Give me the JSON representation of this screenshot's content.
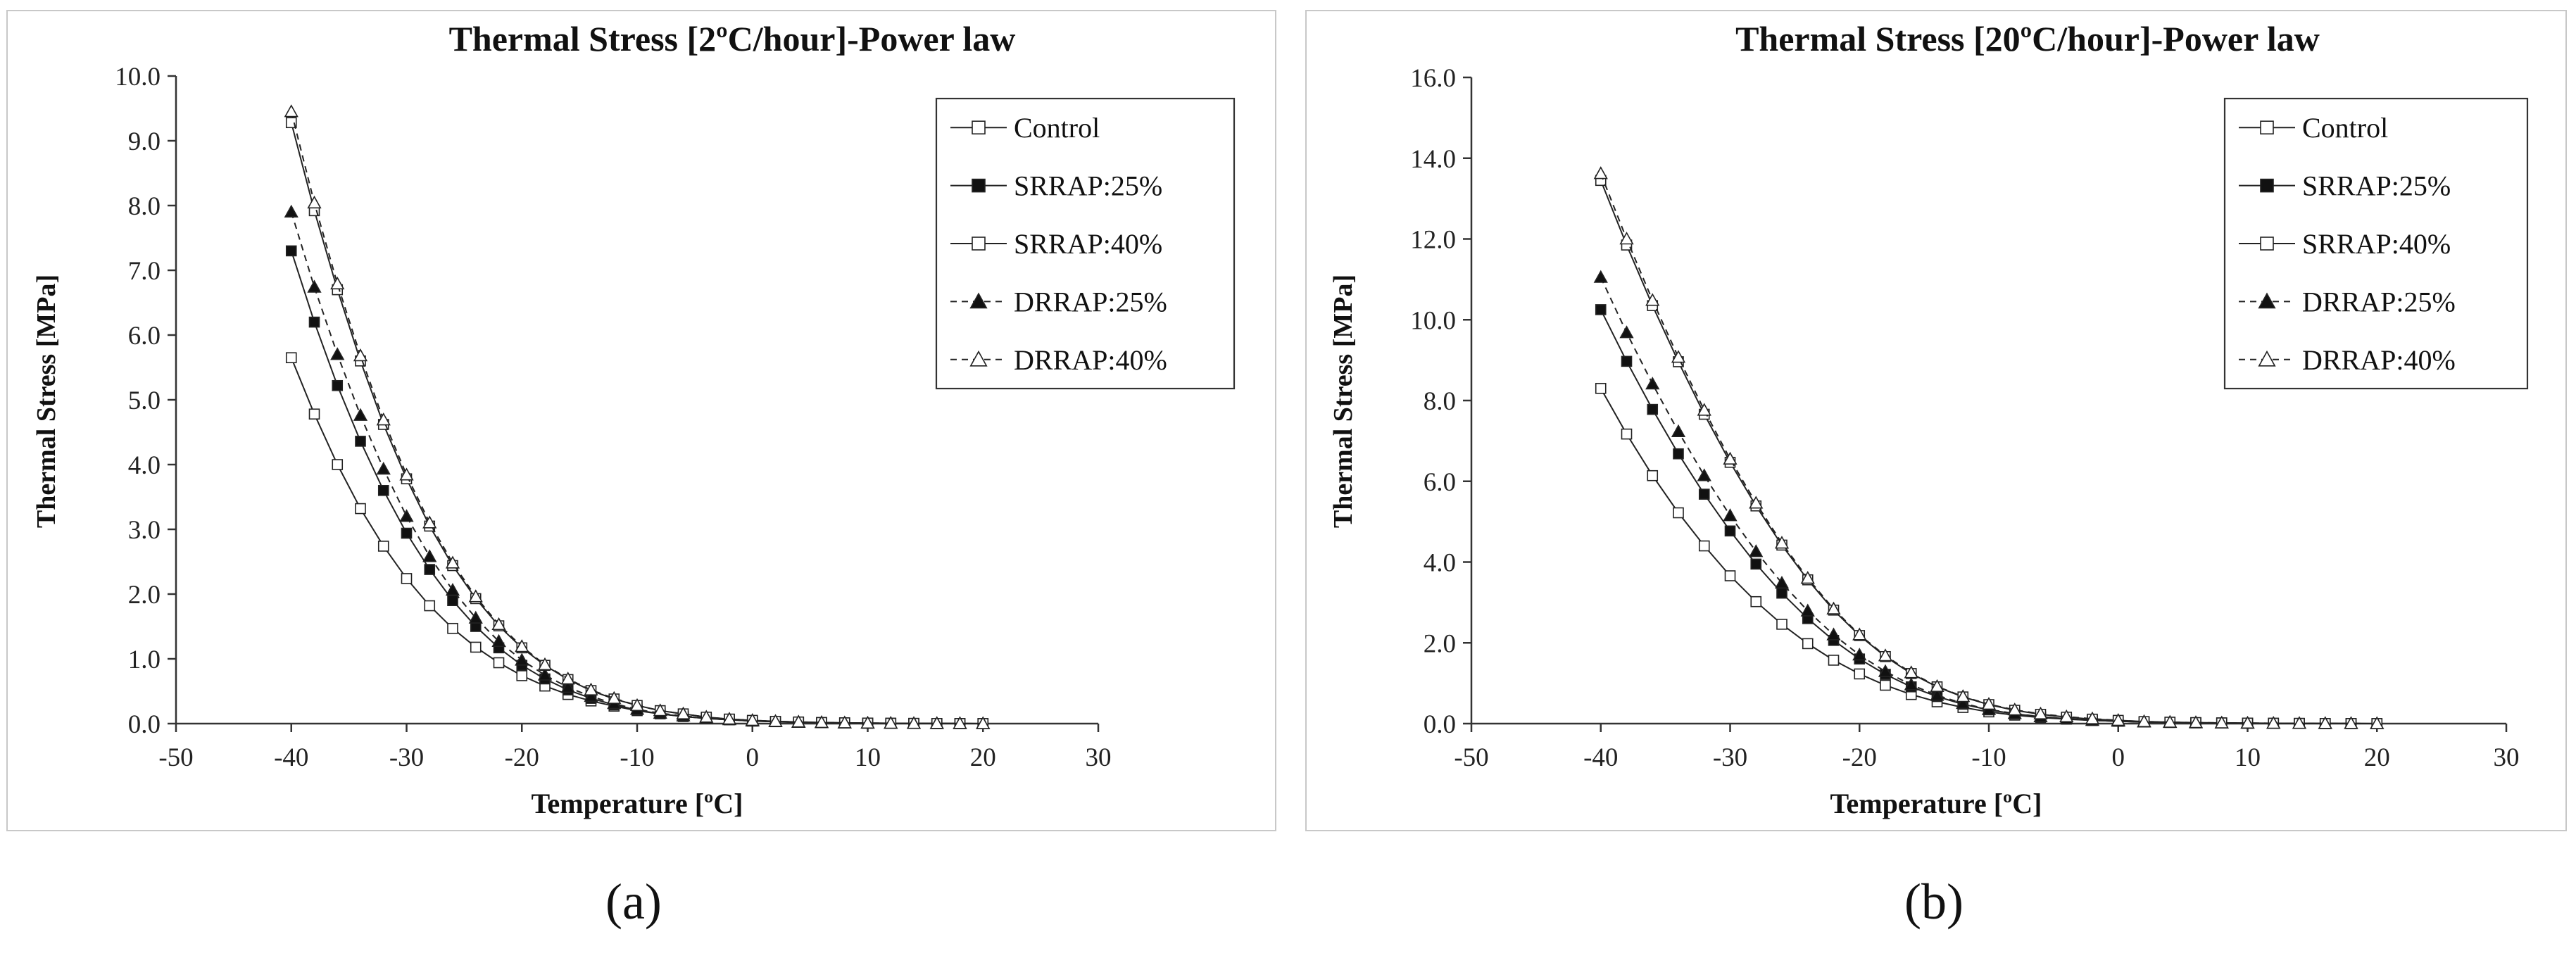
{
  "chart_data": [
    {
      "type": "line",
      "panel_label": "(a)",
      "title": "Thermal Stress [2ºC/hour]-Power law",
      "xlabel": "Temperature [ºC]",
      "ylabel": "Thermal Stress [MPa]",
      "xlim": [
        -50,
        30
      ],
      "ylim": [
        0,
        10
      ],
      "xticks": [
        -50,
        -40,
        -30,
        -20,
        -10,
        0,
        10,
        20,
        30
      ],
      "yticks": [
        0,
        1,
        2,
        3,
        4,
        5,
        6,
        7,
        8,
        9,
        10
      ],
      "ytick_decimals": 1,
      "grid": false,
      "legend_position": "top-right",
      "x": [
        -40,
        -38,
        -36,
        -34,
        -32,
        -30,
        -28,
        -26,
        -24,
        -22,
        -20,
        -18,
        -16,
        -14,
        -12,
        -10,
        -8,
        -6,
        -4,
        -2,
        0,
        2,
        4,
        6,
        8,
        10,
        12,
        14,
        16,
        18,
        20
      ],
      "series": [
        {
          "name": "Control",
          "marker": "square-open",
          "line": "solid",
          "values": [
            5.65,
            4.78,
            4.0,
            3.32,
            2.74,
            2.24,
            1.82,
            1.47,
            1.18,
            0.94,
            0.74,
            0.58,
            0.45,
            0.35,
            0.27,
            0.2,
            0.15,
            0.11,
            0.08,
            0.06,
            0.04,
            0.03,
            0.02,
            0.015,
            0.01,
            0.007,
            0.005,
            0.003,
            0.002,
            0.001,
            0.0
          ]
        },
        {
          "name": "SRRAP:25%",
          "marker": "square-filled",
          "line": "solid",
          "values": [
            7.3,
            6.2,
            5.22,
            4.36,
            3.6,
            2.94,
            2.38,
            1.9,
            1.5,
            1.17,
            0.9,
            0.69,
            0.52,
            0.39,
            0.29,
            0.21,
            0.15,
            0.11,
            0.08,
            0.06,
            0.04,
            0.03,
            0.02,
            0.015,
            0.01,
            0.007,
            0.005,
            0.003,
            0.002,
            0.001,
            0.0
          ]
        },
        {
          "name": "SRRAP:40%",
          "marker": "square-open",
          "line": "solid",
          "values": [
            9.28,
            7.92,
            6.7,
            5.6,
            4.62,
            3.78,
            3.05,
            2.44,
            1.93,
            1.51,
            1.17,
            0.9,
            0.68,
            0.51,
            0.38,
            0.28,
            0.2,
            0.15,
            0.1,
            0.07,
            0.05,
            0.035,
            0.025,
            0.017,
            0.012,
            0.008,
            0.005,
            0.003,
            0.002,
            0.001,
            0.0
          ]
        },
        {
          "name": "DRRAP:25%",
          "marker": "triangle-filled",
          "line": "dashed",
          "values": [
            7.9,
            6.74,
            5.7,
            4.76,
            3.93,
            3.2,
            2.58,
            2.06,
            1.63,
            1.27,
            0.98,
            0.75,
            0.56,
            0.42,
            0.31,
            0.22,
            0.16,
            0.12,
            0.08,
            0.06,
            0.04,
            0.03,
            0.02,
            0.015,
            0.01,
            0.007,
            0.005,
            0.003,
            0.002,
            0.001,
            0.0
          ]
        },
        {
          "name": "DRRAP:40%",
          "marker": "triangle-open",
          "line": "dashed",
          "values": [
            9.45,
            8.04,
            6.79,
            5.68,
            4.69,
            3.84,
            3.1,
            2.48,
            1.96,
            1.53,
            1.19,
            0.91,
            0.69,
            0.52,
            0.39,
            0.28,
            0.2,
            0.15,
            0.1,
            0.07,
            0.05,
            0.035,
            0.025,
            0.017,
            0.012,
            0.008,
            0.005,
            0.003,
            0.002,
            0.001,
            0.0
          ]
        }
      ]
    },
    {
      "type": "line",
      "panel_label": "(b)",
      "title": "Thermal Stress [20ºC/hour]-Power law",
      "xlabel": "Temperature [ºC]",
      "ylabel": "Thermal Stress [MPa]",
      "xlim": [
        -50,
        30
      ],
      "ylim": [
        0,
        16
      ],
      "xticks": [
        -50,
        -40,
        -30,
        -20,
        -10,
        0,
        10,
        20,
        30
      ],
      "yticks": [
        0,
        2,
        4,
        6,
        8,
        10,
        12,
        14,
        16
      ],
      "ytick_decimals": 1,
      "grid": false,
      "legend_position": "top-right",
      "x": [
        -40,
        -38,
        -36,
        -34,
        -32,
        -30,
        -28,
        -26,
        -24,
        -22,
        -20,
        -18,
        -16,
        -14,
        -12,
        -10,
        -8,
        -6,
        -4,
        -2,
        0,
        2,
        4,
        6,
        8,
        10,
        12,
        14,
        16,
        18,
        20
      ],
      "series": [
        {
          "name": "Control",
          "marker": "square-open",
          "line": "solid",
          "values": [
            8.3,
            7.17,
            6.14,
            5.22,
            4.4,
            3.66,
            3.02,
            2.46,
            1.98,
            1.57,
            1.23,
            0.95,
            0.72,
            0.54,
            0.4,
            0.29,
            0.21,
            0.15,
            0.11,
            0.08,
            0.06,
            0.04,
            0.03,
            0.02,
            0.015,
            0.01,
            0.007,
            0.005,
            0.003,
            0.002,
            0.0
          ]
        },
        {
          "name": "SRRAP:25%",
          "marker": "square-filled",
          "line": "solid",
          "values": [
            10.25,
            8.97,
            7.78,
            6.68,
            5.68,
            4.77,
            3.95,
            3.23,
            2.6,
            2.06,
            1.6,
            1.22,
            0.91,
            0.67,
            0.48,
            0.34,
            0.24,
            0.17,
            0.12,
            0.08,
            0.06,
            0.04,
            0.03,
            0.02,
            0.015,
            0.01,
            0.007,
            0.005,
            0.003,
            0.002,
            0.0
          ]
        },
        {
          "name": "SRRAP:40%",
          "marker": "square-open",
          "line": "solid",
          "values": [
            13.45,
            11.85,
            10.35,
            8.96,
            7.66,
            6.47,
            5.39,
            4.42,
            3.56,
            2.81,
            2.18,
            1.66,
            1.24,
            0.91,
            0.66,
            0.47,
            0.33,
            0.23,
            0.16,
            0.11,
            0.08,
            0.05,
            0.035,
            0.025,
            0.017,
            0.012,
            0.008,
            0.005,
            0.003,
            0.002,
            0.0
          ]
        },
        {
          "name": "DRRAP:25%",
          "marker": "triangle-filled",
          "line": "dashed",
          "values": [
            11.05,
            9.68,
            8.41,
            7.23,
            6.14,
            5.15,
            4.26,
            3.48,
            2.79,
            2.2,
            1.7,
            1.29,
            0.96,
            0.7,
            0.5,
            0.35,
            0.25,
            0.17,
            0.12,
            0.08,
            0.06,
            0.04,
            0.03,
            0.02,
            0.015,
            0.01,
            0.007,
            0.005,
            0.003,
            0.002,
            0.0
          ]
        },
        {
          "name": "DRRAP:40%",
          "marker": "triangle-open",
          "line": "dashed",
          "values": [
            13.62,
            12.0,
            10.48,
            9.07,
            7.76,
            6.55,
            5.46,
            4.47,
            3.6,
            2.84,
            2.2,
            1.68,
            1.26,
            0.92,
            0.67,
            0.48,
            0.34,
            0.24,
            0.17,
            0.12,
            0.08,
            0.05,
            0.035,
            0.025,
            0.017,
            0.012,
            0.008,
            0.005,
            0.003,
            0.002,
            0.0
          ]
        }
      ]
    }
  ]
}
